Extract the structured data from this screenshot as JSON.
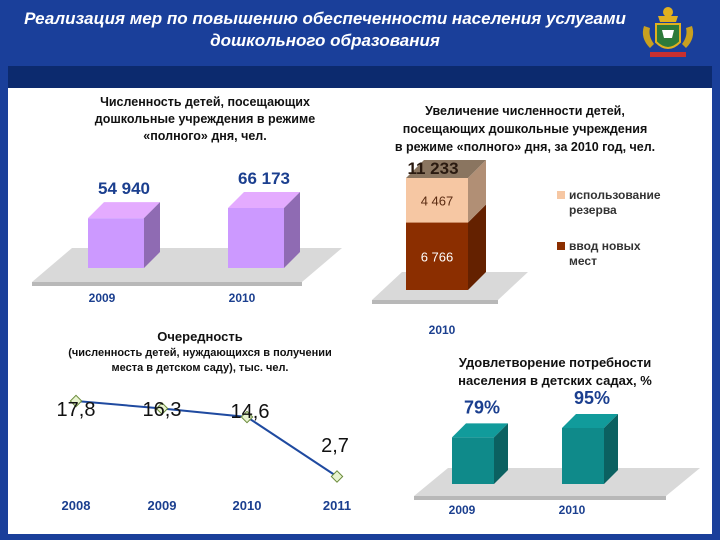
{
  "header": {
    "title": "Реализация мер по повышению обеспеченности населения услугами дошкольного образования",
    "emblem_icon": "coat-of-arms-icon"
  },
  "colors": {
    "frame_blue": "#1a3f9a",
    "purple_bar": "#cc99ff",
    "orange_segment": "#f6c7a3",
    "brown_segment": "#8b2e00",
    "teal_bar": "#0f8a8a",
    "line_color": "#1f4aa0",
    "value_blue": "#1b3f8f"
  },
  "chart_data": [
    {
      "id": "attendance",
      "type": "bar",
      "title": "Численность детей, посещающих дошкольные учреждения в режиме «полного» дня, чел.",
      "title_lines": [
        "Численность детей, посещающих",
        "дошкольные учреждения в режиме",
        "«полного» дня, чел."
      ],
      "categories": [
        "2009",
        "2010"
      ],
      "values": [
        54940,
        66173
      ],
      "value_labels": [
        "54 940",
        "66 173"
      ]
    },
    {
      "id": "increase-2010",
      "type": "bar",
      "stacked": true,
      "title": "Увеличение численности детей, посещающих дошкольные учреждения в режиме «полного» дня, за 2010 год, чел.",
      "title_lines": [
        "Увеличение численности детей,",
        "посещающих дошкольные учреждения",
        "в режиме «полного» дня, за 2010 год, чел."
      ],
      "categories": [
        "2010"
      ],
      "total": 11233,
      "total_label": "11 233",
      "series": [
        {
          "name": "ввод новых мест",
          "values": [
            6766
          ],
          "value_label": "6 766",
          "legend_lines": [
            "ввод новых",
            "мест"
          ]
        },
        {
          "name": "использование резерва",
          "values": [
            4467
          ],
          "value_label": "4 467",
          "legend_lines": [
            "использование",
            "резерва"
          ]
        }
      ]
    },
    {
      "id": "queue",
      "type": "line",
      "title": "Очередность",
      "subtitle": "(численность детей, нуждающихся в получении места в детском саду), тыс. чел.",
      "subtitle_lines": [
        "(численность детей, нуждающихся в получении",
        "места в детском саду), тыс. чел."
      ],
      "categories": [
        "2008",
        "2009",
        "2010",
        "2011"
      ],
      "values": [
        17.8,
        16.3,
        14.6,
        2.7
      ],
      "value_labels": [
        "17,8",
        "16,3",
        "14,6",
        "2,7"
      ]
    },
    {
      "id": "satisfaction",
      "type": "bar",
      "title": "Удовлетворение потребности населения в детских садах, %",
      "title_lines": [
        "Удовлетворение потребности",
        "населения в детских садах, %"
      ],
      "categories": [
        "2009",
        "2010"
      ],
      "values": [
        79,
        95
      ],
      "value_labels": [
        "79%",
        "95%"
      ]
    }
  ]
}
